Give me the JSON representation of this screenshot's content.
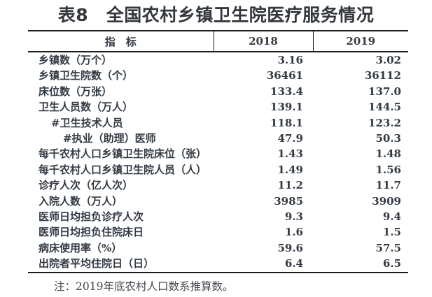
{
  "title": "表8　全国农村乡镇卫生院医疗服务情况",
  "table": {
    "columns": [
      "指　标",
      "2018",
      "2019"
    ],
    "rows": [
      {
        "label": "乡镇数（万个）",
        "indent": 0,
        "y2018": "3.16",
        "y2019": "3.02"
      },
      {
        "label": "乡镇卫生院数（个）",
        "indent": 0,
        "y2018": "36461",
        "y2019": "36112"
      },
      {
        "label": "床位数（万张）",
        "indent": 0,
        "y2018": "133.4",
        "y2019": "137.0"
      },
      {
        "label": "卫生人员数（万人）",
        "indent": 0,
        "y2018": "139.1",
        "y2019": "144.5"
      },
      {
        "label": "#卫生技术人员",
        "indent": 1,
        "y2018": "118.1",
        "y2019": "123.2"
      },
      {
        "label": "#执业（助理）医师",
        "indent": 2,
        "y2018": "47.9",
        "y2019": "50.3"
      },
      {
        "label": "每千农村人口乡镇卫生院床位（张）",
        "indent": 0,
        "y2018": "1.43",
        "y2019": "1.48"
      },
      {
        "label": "每千农村人口乡镇卫生院人员（人）",
        "indent": 0,
        "y2018": "1.49",
        "y2019": "1.56"
      },
      {
        "label": "诊疗人次（亿人次）",
        "indent": 0,
        "y2018": "11.2",
        "y2019": "11.7"
      },
      {
        "label": "入院人数（万人）",
        "indent": 0,
        "y2018": "3985",
        "y2019": "3909"
      },
      {
        "label": "医师日均担负诊疗人次",
        "indent": 0,
        "y2018": "9.3",
        "y2019": "9.4"
      },
      {
        "label": "医师日均担负住院床日",
        "indent": 0,
        "y2018": "1.6",
        "y2019": "1.5"
      },
      {
        "label": "病床使用率（%）",
        "indent": 0,
        "y2018": "59.6",
        "y2019": "57.5"
      },
      {
        "label": "出院者平均住院日（日）",
        "indent": 0,
        "y2018": "6.4",
        "y2019": "6.5"
      }
    ]
  },
  "note": "注：2019年底农村人口数系推算数。",
  "colors": {
    "text": "#333a43",
    "title": "#34373c",
    "line": "#1c1c1c",
    "note": "#45474e",
    "background": "#ffffff"
  }
}
